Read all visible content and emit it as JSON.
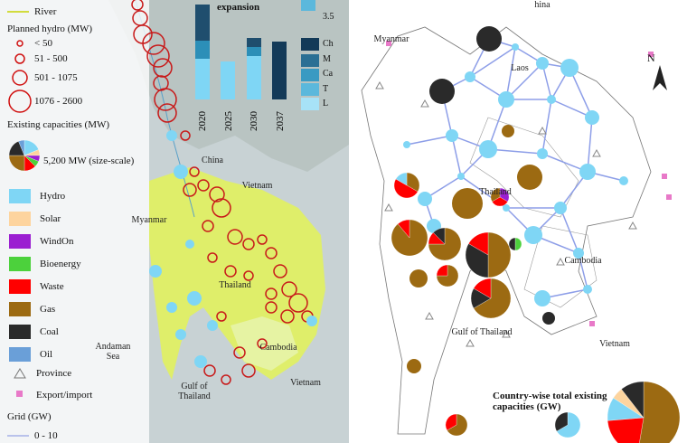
{
  "left_map": {
    "legend": {
      "river": "River",
      "planned_hydro_title": "Planned hydro (MW)",
      "planned_hydro_classes": [
        "< 50",
        "51 - 500",
        "501 - 1075",
        "1076 - 2600"
      ],
      "existing_title": "Existing capacities (MW)",
      "size_scale": "5,200 MW (size-scale)",
      "technologies": [
        "Hydro",
        "Solar",
        "WindOn",
        "Bioenergy",
        "Waste",
        "Gas",
        "Coal",
        "Oil"
      ],
      "province": "Province",
      "export_import": "Export/import",
      "grid_title": "Grid (GW)",
      "grid_class": "0 - 10"
    },
    "inset": {
      "title": "expansion",
      "scale_label": "3.5",
      "years": [
        "2020",
        "2025",
        "2030",
        "2037"
      ],
      "classes": [
        "Ch",
        "M",
        "Ca",
        "T",
        "L"
      ]
    },
    "labels": [
      "China",
      "Vietnam",
      "Myanmar",
      "Andaman Sea",
      "Thailand",
      "Cambodia",
      "Gulf of Thailand",
      "Vietnam"
    ]
  },
  "right_map": {
    "labels": [
      "Myanmar",
      "Laos",
      "Thailand",
      "Cambodia",
      "Gulf of Thailand",
      "Vietnam",
      "hina"
    ],
    "north": "N",
    "inset_title": "Country-wise total existing capacities (GW)"
  }
}
